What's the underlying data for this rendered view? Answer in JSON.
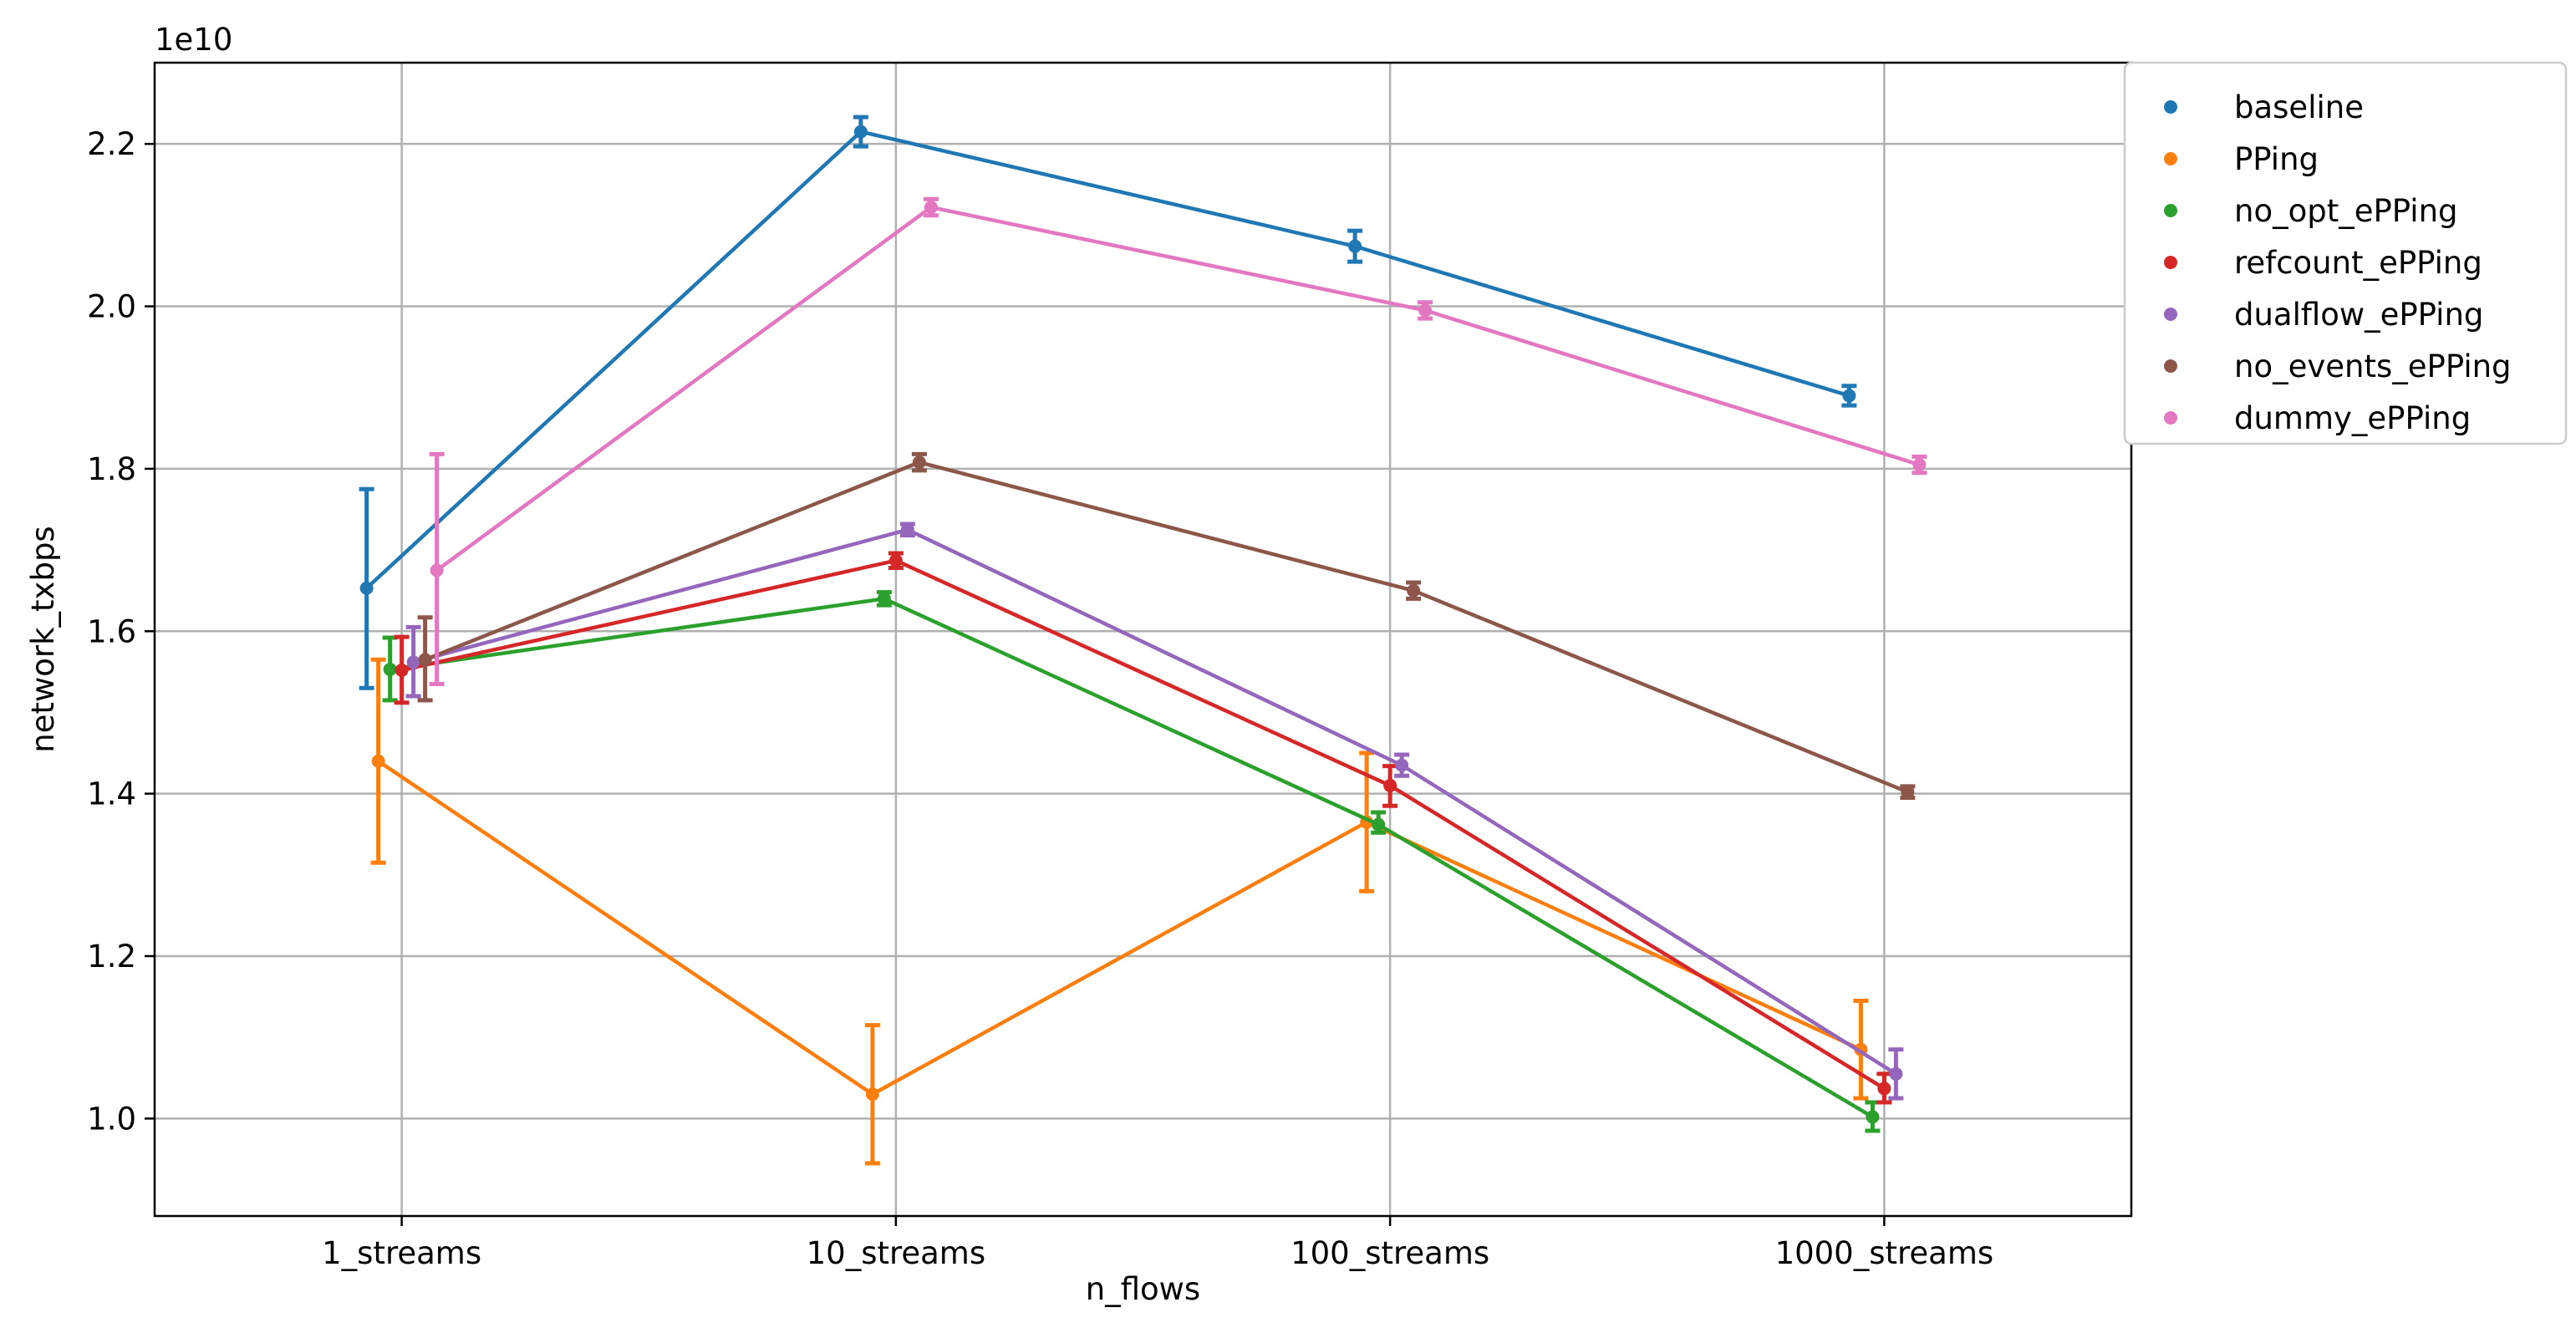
{
  "chart_data": {
    "type": "line",
    "xlabel": "n_flows",
    "ylabel": "network_txbps",
    "exponent_label": "1e10",
    "categories": [
      "1_streams",
      "10_streams",
      "100_streams",
      "1000_streams"
    ],
    "y_scale_factor": 10000000000,
    "ylim": [
      0.88,
      2.3
    ],
    "yticks": [
      1.0,
      1.2,
      1.4,
      1.6,
      1.8,
      2.0,
      2.2
    ],
    "ytick_labels": [
      "1.0",
      "1.2",
      "1.4",
      "1.6",
      "1.8",
      "2.0",
      "2.2"
    ],
    "grid": true,
    "legend_position": "outside-right-top",
    "error_bars": true,
    "series": [
      {
        "name": "baseline",
        "color": "#1f77b4",
        "values": [
          1.653,
          2.215,
          2.074,
          1.89
        ],
        "errors": [
          [
            1.53,
            1.775
          ],
          [
            2.197,
            2.233
          ],
          [
            2.055,
            2.093
          ],
          [
            1.878,
            1.902
          ]
        ]
      },
      {
        "name": "PPing",
        "color": "#ff7f0e",
        "values": [
          1.44,
          1.03,
          1.365,
          1.085
        ],
        "errors": [
          [
            1.315,
            1.565
          ],
          [
            0.945,
            1.115
          ],
          [
            1.28,
            1.45
          ],
          [
            1.025,
            1.145
          ]
        ]
      },
      {
        "name": "no_opt_ePPing",
        "color": "#2ca02c",
        "values": [
          1.553,
          1.64,
          1.362,
          1.002
        ],
        "errors": [
          [
            1.515,
            1.592
          ],
          [
            1.632,
            1.648
          ],
          [
            1.352,
            1.377
          ],
          [
            0.985,
            1.02
          ]
        ]
      },
      {
        "name": "refcount_ePPing",
        "color": "#d62728",
        "values": [
          1.552,
          1.687,
          1.41,
          1.037
        ],
        "errors": [
          [
            1.512,
            1.593
          ],
          [
            1.678,
            1.696
          ],
          [
            1.385,
            1.434
          ],
          [
            1.02,
            1.055
          ]
        ]
      },
      {
        "name": "dualflow_ePPing",
        "color": "#9467bd",
        "values": [
          1.562,
          1.725,
          1.435,
          1.055
        ],
        "errors": [
          [
            1.52,
            1.605
          ],
          [
            1.718,
            1.732
          ],
          [
            1.422,
            1.448
          ],
          [
            1.025,
            1.085
          ]
        ]
      },
      {
        "name": "no_events_ePPing",
        "color": "#8c564b",
        "values": [
          1.565,
          1.808,
          1.65,
          1.402
        ],
        "errors": [
          [
            1.515,
            1.617
          ],
          [
            1.798,
            1.818
          ],
          [
            1.64,
            1.66
          ],
          [
            1.395,
            1.409
          ]
        ]
      },
      {
        "name": "dummy_ePPing",
        "color": "#e377c2",
        "values": [
          1.675,
          2.122,
          1.995,
          1.805
        ],
        "errors": [
          [
            1.535,
            1.818
          ],
          [
            2.112,
            2.132
          ],
          [
            1.985,
            2.005
          ],
          [
            1.795,
            1.815
          ]
        ]
      }
    ]
  }
}
